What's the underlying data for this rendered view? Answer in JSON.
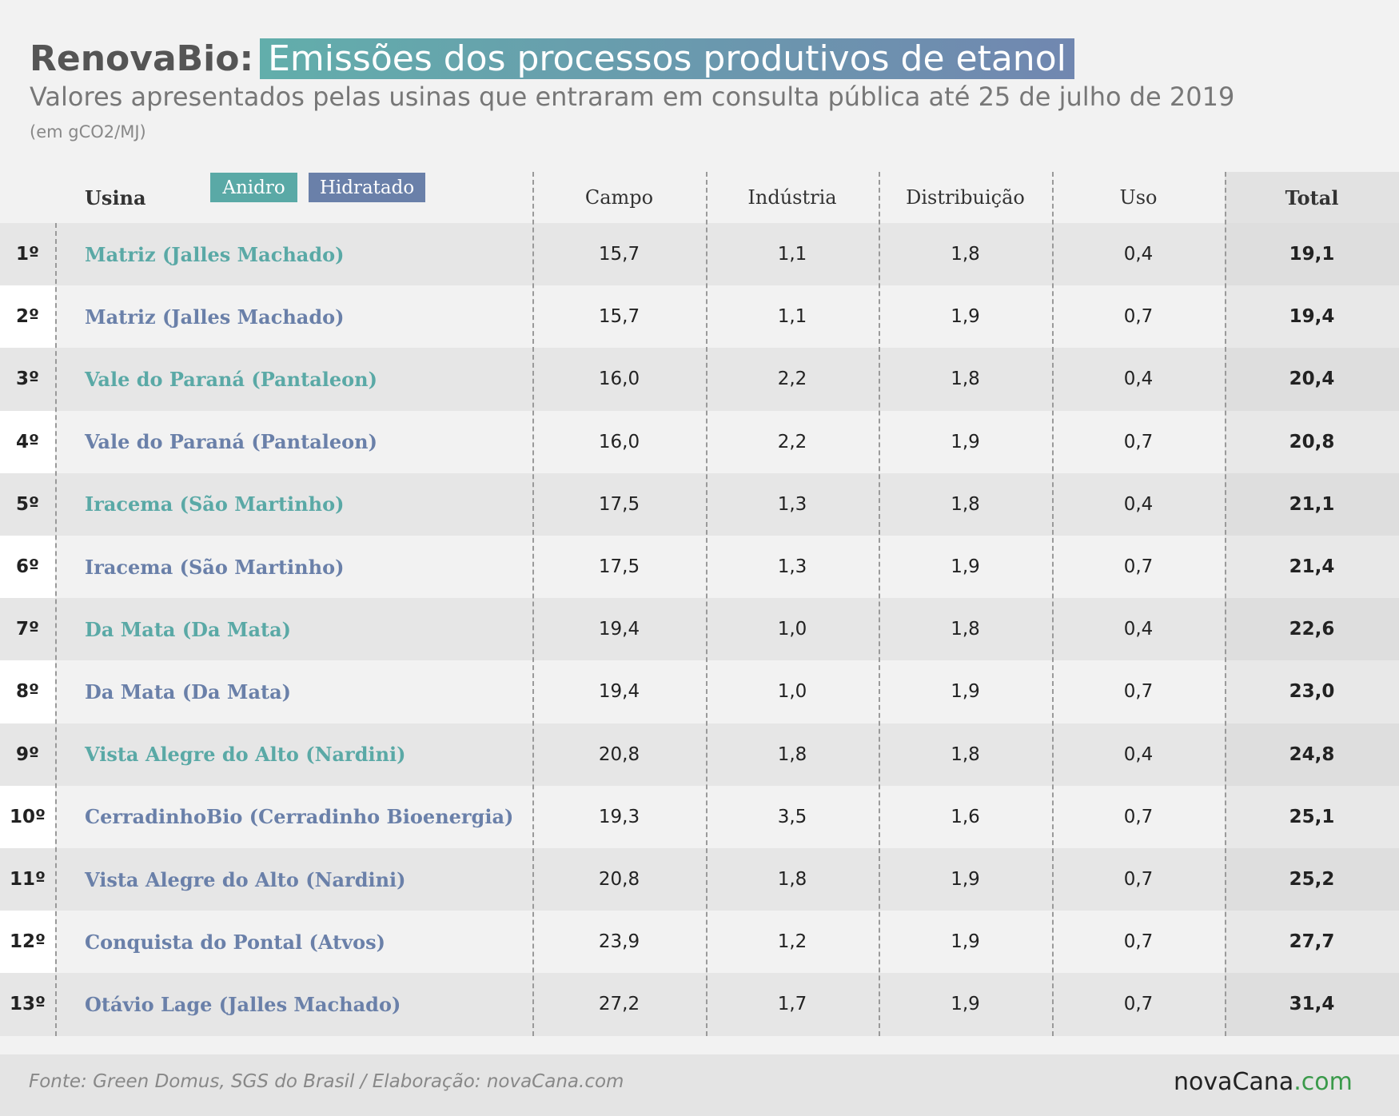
{
  "header": {
    "title_lead": "RenovaBio:",
    "title_highlight": "Emissões dos processos produtivos de etanol",
    "subtitle": "Valores apresentados pelas usinas que entraram em consulta pública até 25 de julho de 2019",
    "unit": "(em gCO2/MJ)"
  },
  "legend": [
    {
      "label": "Anidro",
      "color": "#5aa9a6"
    },
    {
      "label": "Hidratado",
      "color": "#6a80a9"
    }
  ],
  "table": {
    "headers": [
      "Usina",
      "Campo",
      "Indústria",
      "Distribuição",
      "Uso",
      "Total"
    ],
    "rows": [
      {
        "rank": "1º",
        "name": "Matriz (Jalles Machado)",
        "color": "#5aa9a6",
        "values": [
          "15,7",
          "1,1",
          "1,8",
          "0,4",
          "19,1"
        ]
      },
      {
        "rank": "2º",
        "name": "Matriz (Jalles Machado)",
        "color": "#6a80a9",
        "values": [
          "15,7",
          "1,1",
          "1,9",
          "0,7",
          "19,4"
        ]
      },
      {
        "rank": "3º",
        "name": "Vale do Paraná (Pantaleon)",
        "color": "#5aa9a6",
        "values": [
          "16,0",
          "2,2",
          "1,8",
          "0,4",
          "20,4"
        ]
      },
      {
        "rank": "4º",
        "name": "Vale do Paraná (Pantaleon)",
        "color": "#6a80a9",
        "values": [
          "16,0",
          "2,2",
          "1,9",
          "0,7",
          "20,8"
        ]
      },
      {
        "rank": "5º",
        "name": "Iracema (São Martinho)",
        "color": "#5aa9a6",
        "values": [
          "17,5",
          "1,3",
          "1,8",
          "0,4",
          "21,1"
        ]
      },
      {
        "rank": "6º",
        "name": "Iracema (São Martinho)",
        "color": "#6a80a9",
        "values": [
          "17,5",
          "1,3",
          "1,9",
          "0,7",
          "21,4"
        ]
      },
      {
        "rank": "7º",
        "name": "Da Mata (Da Mata)",
        "color": "#5aa9a6",
        "values": [
          "19,4",
          "1,0",
          "1,8",
          "0,4",
          "22,6"
        ]
      },
      {
        "rank": "8º",
        "name": "Da Mata (Da Mata)",
        "color": "#6a80a9",
        "values": [
          "19,4",
          "1,0",
          "1,9",
          "0,7",
          "23,0"
        ]
      },
      {
        "rank": "9º",
        "name": "Vista Alegre do Alto (Nardini)",
        "color": "#5aa9a6",
        "values": [
          "20,8",
          "1,8",
          "1,8",
          "0,4",
          "24,8"
        ]
      },
      {
        "rank": "10º",
        "name": "CerradinhoBio (Cerradinho Bioenergia)",
        "color": "#6a80a9",
        "values": [
          "19,3",
          "3,5",
          "1,6",
          "0,7",
          "25,1"
        ]
      },
      {
        "rank": "11º",
        "name": "Vista Alegre do Alto (Nardini)",
        "color": "#6a80a9",
        "values": [
          "20,8",
          "1,8",
          "1,9",
          "0,7",
          "25,2"
        ]
      },
      {
        "rank": "12º",
        "name": "Conquista do Pontal (Atvos)",
        "color": "#6a80a9",
        "values": [
          "23,9",
          "1,2",
          "1,9",
          "0,7",
          "27,7"
        ]
      },
      {
        "rank": "13º",
        "name": "Otávio Lage (Jalles Machado)",
        "color": "#6a80a9",
        "values": [
          "27,2",
          "1,7",
          "1,9",
          "0,7",
          "31,4"
        ]
      }
    ]
  },
  "footer": {
    "source": "Fonte: Green Domus, SGS do Brasil / Elaboração: novaCana.com",
    "logo_name": "novaCana",
    "logo_domain": ".com",
    "logo_domain_color": "#3a9a4a"
  }
}
